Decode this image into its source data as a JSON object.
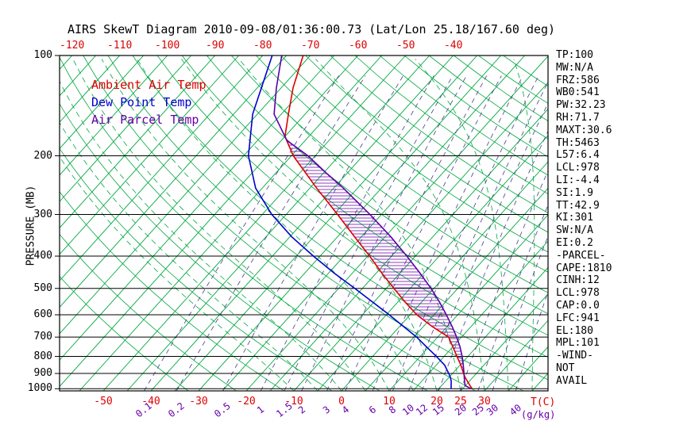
{
  "title": "AIRS SkewT Diagram 2010-09-08/01:36:00.73 (Lat/Lon 25.18/167.60 deg)",
  "axes": {
    "pressure_title": "PRESSURE (MB)",
    "temp_unit": "T(C)",
    "mixing_unit": "(g/kg)",
    "pressure_ticks": [
      100,
      200,
      300,
      400,
      500,
      600,
      700,
      800,
      900,
      1000
    ],
    "top_temp_ticks": [
      -120,
      -110,
      -100,
      -90,
      -80,
      -70,
      -60,
      -50,
      -40
    ],
    "bottom_temp_ticks": [
      -50,
      -40,
      -30,
      -20,
      -10,
      0,
      10,
      20,
      25,
      30
    ],
    "mixing_ratio_ticks": [
      0.1,
      0.2,
      0.5,
      1,
      1.5,
      2,
      3,
      4,
      6,
      8,
      10,
      12,
      15,
      20,
      25,
      30,
      40
    ]
  },
  "legend": [
    {
      "label": "Ambient Air Temp",
      "color": "#dd0000"
    },
    {
      "label": "Dew Point Temp",
      "color": "#0000cc"
    },
    {
      "label": "Air Parcel Temp",
      "color": "#6600aa"
    }
  ],
  "stats_panel": [
    "TP:100",
    "MW:N/A",
    "FRZ:586",
    "WB0:541",
    "PW:32.23",
    "RH:71.7",
    "MAXT:30.6",
    "TH:5463",
    "L57:6.4",
    "LCL:978",
    "LI:-4.4",
    "SI:1.9",
    "TT:42.9",
    "KI:301",
    "SW:N/A",
    "EI:0.2",
    "-PARCEL-",
    "CAPE:1810",
    "CINH:12",
    "LCL:978",
    "CAP:0.0",
    "LFC:941",
    "EL:180",
    "MPL:101",
    "-WIND-",
    "NOT",
    "AVAIL"
  ],
  "colors": {
    "frame": "#000000",
    "isotherm_green": "#00a840",
    "moist_green": "#00a840",
    "mixing_purple": "#483d8b",
    "ambient_red": "#dd0000",
    "dewpoint_blue": "#0000cc",
    "parcel_purple": "#5b00a8",
    "hatch_purple": "#6600aa"
  },
  "chart_data": {
    "type": "line",
    "title": "AIRS SkewT Diagram 2010-09-08/01:36:00.73 (Lat/Lon 25.18/167.60 deg)",
    "xlabel": "T(C)",
    "ylabel": "PRESSURE (MB)",
    "y_scale": "log",
    "pressure_range_mb": [
      100,
      1015
    ],
    "bottom_temp_range_c": [
      -50,
      40
    ],
    "grid": {
      "pressure_lines_mb": [
        100,
        200,
        300,
        400,
        500,
        600,
        700,
        800,
        900,
        1000
      ],
      "isotherm_step_c": 5,
      "isotherm_range_c": [
        -130,
        45
      ],
      "dry_adiabat_theta_k": {
        "start": 240,
        "end": 470,
        "step": 10
      },
      "moist_adiabat_start_c": {
        "start": -10,
        "end": 40,
        "step": 5
      },
      "mixing_ratio_lines_g_kg": [
        0.1,
        0.2,
        0.5,
        1,
        1.5,
        2,
        3,
        4,
        6,
        8,
        10,
        12,
        15,
        20,
        25,
        30,
        40
      ]
    },
    "series": [
      {
        "name": "Ambient Air Temp",
        "color": "#dd0000",
        "points_p_t": [
          [
            1000,
            27.0
          ],
          [
            975,
            25.8
          ],
          [
            950,
            24.6
          ],
          [
            925,
            23.4
          ],
          [
            900,
            22.3
          ],
          [
            850,
            20.2
          ],
          [
            800,
            17.7
          ],
          [
            750,
            15.1
          ],
          [
            700,
            12.3
          ],
          [
            650,
            6.8
          ],
          [
            600,
            1.4
          ],
          [
            550,
            -3.4
          ],
          [
            500,
            -8.4
          ],
          [
            450,
            -13.8
          ],
          [
            400,
            -19.6
          ],
          [
            350,
            -26.4
          ],
          [
            300,
            -34.2
          ],
          [
            250,
            -43.6
          ],
          [
            200,
            -54.6
          ],
          [
            175,
            -60.0
          ],
          [
            150,
            -63.5
          ],
          [
            125,
            -67.5
          ],
          [
            100,
            -71.5
          ]
        ]
      },
      {
        "name": "Dew Point Temp",
        "color": "#0000cc",
        "points_p_t": [
          [
            1000,
            22.6
          ],
          [
            975,
            21.9
          ],
          [
            950,
            21.2
          ],
          [
            925,
            20.3
          ],
          [
            900,
            19.2
          ],
          [
            850,
            16.8
          ],
          [
            800,
            13.4
          ],
          [
            750,
            9.6
          ],
          [
            700,
            5.6
          ],
          [
            650,
            0.8
          ],
          [
            600,
            -4.4
          ],
          [
            550,
            -10.2
          ],
          [
            500,
            -16.6
          ],
          [
            450,
            -23.8
          ],
          [
            400,
            -31.4
          ],
          [
            350,
            -39.6
          ],
          [
            300,
            -48.0
          ],
          [
            250,
            -56.4
          ],
          [
            200,
            -64.0
          ],
          [
            150,
            -71.0
          ],
          [
            100,
            -78.0
          ]
        ]
      },
      {
        "name": "Air Parcel Temp",
        "color": "#5b00a8",
        "points_p_t": [
          [
            1000,
            26.8
          ],
          [
            978,
            24.9
          ],
          [
            950,
            24.0
          ],
          [
            925,
            23.2
          ],
          [
            900,
            22.4
          ],
          [
            850,
            20.7
          ],
          [
            800,
            18.8
          ],
          [
            750,
            16.6
          ],
          [
            700,
            14.0
          ],
          [
            650,
            11.0
          ],
          [
            600,
            7.6
          ],
          [
            550,
            3.8
          ],
          [
            500,
            -0.6
          ],
          [
            450,
            -5.8
          ],
          [
            400,
            -11.8
          ],
          [
            350,
            -18.8
          ],
          [
            300,
            -27.4
          ],
          [
            250,
            -38.0
          ],
          [
            225,
            -44.5
          ],
          [
            200,
            -51.5
          ],
          [
            180,
            -58.8
          ],
          [
            150,
            -66.5
          ],
          [
            125,
            -71.0
          ],
          [
            100,
            -76.0
          ]
        ]
      }
    ],
    "cape_hatch_between_mb": [
      941,
      180
    ],
    "indices": {
      "TP": 100,
      "MW": "N/A",
      "FRZ": 586,
      "WB0": 541,
      "PW": 32.23,
      "RH": 71.7,
      "MAXT": 30.6,
      "TH": 5463,
      "L57": 6.4,
      "LCL": 978,
      "LI": -4.4,
      "SI": 1.9,
      "TT": 42.9,
      "KI": 301,
      "SW": "N/A",
      "EI": 0.2,
      "parcel": {
        "CAPE": 1810,
        "CINH": 12,
        "LCL": 978,
        "CAP": 0.0,
        "LFC": 941,
        "EL": 180,
        "MPL": 101
      },
      "wind": "NOT AVAIL"
    }
  }
}
